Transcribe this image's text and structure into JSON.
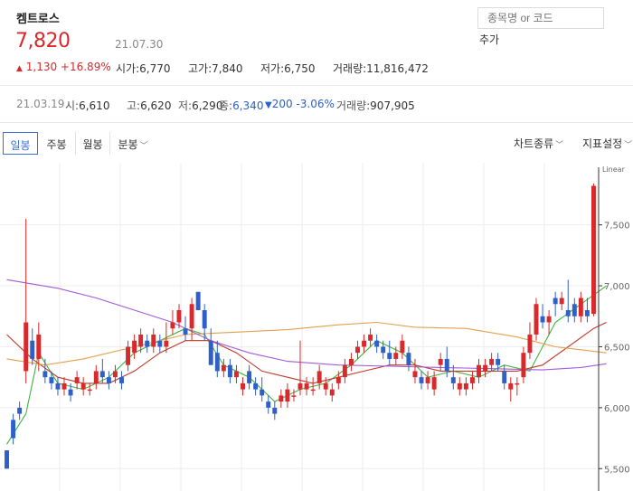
{
  "stock": {
    "name": "켐트로스",
    "price": "7,820",
    "date": "21.07.30",
    "change_arrow": "▲",
    "change": "1,130 +16.89%",
    "open_label": "시가:",
    "open": "6,770",
    "high_label": "고가:",
    "high": "7,840",
    "low_label": "저가:",
    "low": "6,750",
    "volume_label": "거래량:",
    "volume": "11,816,472"
  },
  "search": {
    "placeholder": "종목명 or 코드",
    "add_label": "추가"
  },
  "detail": {
    "date": "21.03.19",
    "open_label": "시:",
    "open": "6,610",
    "high_label": "고:",
    "high": "6,620",
    "low_label": "저:",
    "low": "6,290",
    "close_label": "종:",
    "close": "6,340",
    "change_arrow": "▼",
    "change": "200 -3.06%",
    "volume_label": "거래량:",
    "volume": "907,905"
  },
  "tabs": {
    "daily": "일봉",
    "weekly": "주봉",
    "monthly": "월봉",
    "minute": "분봉",
    "chart_type": "차트종류",
    "indicator": "지표설정"
  },
  "colors": {
    "up": "#d9292c",
    "down": "#2f60c8",
    "ma5": "#3fb43f",
    "ma20": "#c0392b",
    "ma60": "#e3a04f",
    "ma120": "#a55bd6"
  },
  "chart_data": {
    "type": "candlestick",
    "scale": "Linear",
    "ylim": [
      5450,
      7950
    ],
    "y_ticks": [
      5500,
      6000,
      6500,
      7000,
      7500
    ],
    "y_tick_labels": [
      "5,500",
      "6,000",
      "6,500",
      "7,000",
      "7,500"
    ],
    "candles": [
      [
        5650,
        5650,
        5500,
        5500
      ],
      [
        5900,
        5950,
        5700,
        5750
      ],
      [
        6000,
        6050,
        5900,
        5950
      ],
      [
        6300,
        7550,
        6200,
        6700
      ],
      [
        6550,
        6650,
        6350,
        6400
      ],
      [
        6400,
        6700,
        6300,
        6600
      ],
      [
        6300,
        6400,
        6200,
        6250
      ],
      [
        6250,
        6300,
        6150,
        6200
      ],
      [
        6200,
        6250,
        6100,
        6150
      ],
      [
        6150,
        6250,
        6100,
        6200
      ],
      [
        6150,
        6200,
        6050,
        6100
      ],
      [
        6200,
        6300,
        6150,
        6250
      ],
      [
        6150,
        6250,
        6100,
        6200
      ],
      [
        6150,
        6200,
        6100,
        6150
      ],
      [
        6200,
        6350,
        6150,
        6300
      ],
      [
        6300,
        6400,
        6200,
        6250
      ],
      [
        6250,
        6300,
        6150,
        6200
      ],
      [
        6250,
        6350,
        6200,
        6300
      ],
      [
        6250,
        6300,
        6150,
        6200
      ],
      [
        6350,
        6550,
        6300,
        6500
      ],
      [
        6450,
        6600,
        6400,
        6550
      ],
      [
        6500,
        6650,
        6450,
        6600
      ],
      [
        6550,
        6600,
        6450,
        6500
      ],
      [
        6500,
        6650,
        6450,
        6600
      ],
      [
        6550,
        6600,
        6450,
        6500
      ],
      [
        6500,
        6700,
        6450,
        6550
      ],
      [
        6650,
        6800,
        6600,
        6700
      ],
      [
        6700,
        6850,
        6650,
        6800
      ],
      [
        6650,
        6750,
        6550,
        6600
      ],
      [
        6650,
        6900,
        6550,
        6850
      ],
      [
        6950,
        6950,
        6800,
        6800
      ],
      [
        6800,
        6850,
        6550,
        6650
      ],
      [
        6550,
        6650,
        6350,
        6350
      ],
      [
        6450,
        6550,
        6250,
        6300
      ],
      [
        6300,
        6400,
        6250,
        6350
      ],
      [
        6350,
        6400,
        6200,
        6250
      ],
      [
        6250,
        6350,
        6200,
        6300
      ],
      [
        6150,
        6250,
        6100,
        6200
      ],
      [
        6300,
        6350,
        6150,
        6200
      ],
      [
        6200,
        6250,
        6100,
        6150
      ],
      [
        6150,
        6250,
        6050,
        6100
      ],
      [
        6050,
        6100,
        5950,
        6000
      ],
      [
        6000,
        6050,
        5900,
        5950
      ],
      [
        6050,
        6150,
        6000,
        6100
      ],
      [
        6050,
        6200,
        6000,
        6150
      ],
      [
        6100,
        6150,
        6050,
        6100
      ],
      [
        6150,
        6550,
        6100,
        6200
      ],
      [
        6150,
        6250,
        6100,
        6200
      ],
      [
        6150,
        6250,
        6100,
        6150
      ],
      [
        6200,
        6350,
        6150,
        6300
      ],
      [
        6150,
        6250,
        6100,
        6200
      ],
      [
        6100,
        6200,
        6050,
        6150
      ],
      [
        6200,
        6300,
        6150,
        6250
      ],
      [
        6250,
        6400,
        6200,
        6350
      ],
      [
        6350,
        6450,
        6300,
        6400
      ],
      [
        6450,
        6550,
        6400,
        6500
      ],
      [
        6500,
        6600,
        6450,
        6550
      ],
      [
        6550,
        6650,
        6500,
        6600
      ],
      [
        6550,
        6600,
        6450,
        6500
      ],
      [
        6500,
        6550,
        6400,
        6450
      ],
      [
        6450,
        6550,
        6350,
        6400
      ],
      [
        6400,
        6500,
        6350,
        6450
      ],
      [
        6450,
        6600,
        6400,
        6550
      ],
      [
        6450,
        6500,
        6300,
        6350
      ],
      [
        6250,
        6400,
        6200,
        6300
      ],
      [
        6250,
        6300,
        6150,
        6200
      ],
      [
        6200,
        6300,
        6150,
        6250
      ],
      [
        6150,
        6300,
        6100,
        6250
      ],
      [
        6350,
        6450,
        6300,
        6400
      ],
      [
        6400,
        6500,
        6250,
        6300
      ],
      [
        6250,
        6350,
        6150,
        6200
      ],
      [
        6150,
        6250,
        6100,
        6200
      ],
      [
        6150,
        6250,
        6100,
        6200
      ],
      [
        6200,
        6300,
        6150,
        6250
      ],
      [
        6250,
        6400,
        6200,
        6350
      ],
      [
        6300,
        6400,
        6250,
        6350
      ],
      [
        6350,
        6450,
        6300,
        6400
      ],
      [
        6400,
        6450,
        6300,
        6350
      ],
      [
        6300,
        6350,
        6150,
        6200
      ],
      [
        6150,
        6250,
        6050,
        6200
      ],
      [
        6200,
        6250,
        6100,
        6200
      ],
      [
        6250,
        6500,
        6200,
        6450
      ],
      [
        6450,
        6700,
        6400,
        6600
      ],
      [
        6600,
        6900,
        6550,
        6850
      ],
      [
        6750,
        6850,
        6650,
        6700
      ],
      [
        6700,
        6800,
        6600,
        6750
      ],
      [
        6900,
        6950,
        6750,
        6850
      ],
      [
        6850,
        6950,
        6800,
        6900
      ],
      [
        6800,
        7050,
        6700,
        6750
      ],
      [
        6850,
        6900,
        6700,
        6750
      ],
      [
        6750,
        6950,
        6700,
        6900
      ],
      [
        6800,
        6900,
        6700,
        6750
      ],
      [
        6770,
        7840,
        6750,
        7820
      ]
    ],
    "ma_lines": [
      {
        "name": "MA5",
        "color": "#3fb43f",
        "points": [
          [
            0,
            5700
          ],
          [
            3,
            5950
          ],
          [
            5,
            6450
          ],
          [
            8,
            6200
          ],
          [
            12,
            6150
          ],
          [
            16,
            6250
          ],
          [
            20,
            6450
          ],
          [
            24,
            6550
          ],
          [
            28,
            6650
          ],
          [
            31,
            6600
          ],
          [
            34,
            6350
          ],
          [
            38,
            6250
          ],
          [
            42,
            6050
          ],
          [
            46,
            6150
          ],
          [
            50,
            6200
          ],
          [
            54,
            6350
          ],
          [
            58,
            6550
          ],
          [
            62,
            6450
          ],
          [
            66,
            6250
          ],
          [
            70,
            6300
          ],
          [
            74,
            6250
          ],
          [
            78,
            6350
          ],
          [
            82,
            6300
          ],
          [
            86,
            6700
          ],
          [
            90,
            6850
          ],
          [
            94,
            7000
          ]
        ]
      },
      {
        "name": "MA20",
        "color": "#c0392b",
        "points": [
          [
            0,
            6600
          ],
          [
            4,
            6400
          ],
          [
            8,
            6250
          ],
          [
            12,
            6200
          ],
          [
            16,
            6200
          ],
          [
            20,
            6300
          ],
          [
            24,
            6450
          ],
          [
            28,
            6550
          ],
          [
            32,
            6550
          ],
          [
            36,
            6450
          ],
          [
            40,
            6300
          ],
          [
            44,
            6250
          ],
          [
            48,
            6200
          ],
          [
            52,
            6250
          ],
          [
            56,
            6300
          ],
          [
            60,
            6350
          ],
          [
            64,
            6350
          ],
          [
            68,
            6300
          ],
          [
            72,
            6300
          ],
          [
            76,
            6300
          ],
          [
            80,
            6300
          ],
          [
            84,
            6350
          ],
          [
            88,
            6500
          ],
          [
            92,
            6650
          ],
          [
            94,
            6700
          ]
        ]
      },
      {
        "name": "MA60",
        "color": "#e3a04f",
        "points": [
          [
            0,
            6400
          ],
          [
            6,
            6350
          ],
          [
            12,
            6400
          ],
          [
            20,
            6500
          ],
          [
            28,
            6600
          ],
          [
            36,
            6620
          ],
          [
            44,
            6640
          ],
          [
            52,
            6680
          ],
          [
            58,
            6700
          ],
          [
            64,
            6660
          ],
          [
            72,
            6650
          ],
          [
            80,
            6580
          ],
          [
            86,
            6500
          ],
          [
            94,
            6450
          ]
        ]
      },
      {
        "name": "MA120",
        "color": "#a55bd6",
        "points": [
          [
            0,
            7050
          ],
          [
            8,
            6980
          ],
          [
            14,
            6900
          ],
          [
            20,
            6800
          ],
          [
            26,
            6700
          ],
          [
            32,
            6550
          ],
          [
            38,
            6450
          ],
          [
            44,
            6380
          ],
          [
            52,
            6350
          ],
          [
            60,
            6340
          ],
          [
            68,
            6330
          ],
          [
            76,
            6320
          ],
          [
            84,
            6310
          ],
          [
            90,
            6330
          ],
          [
            94,
            6360
          ]
        ]
      }
    ]
  }
}
